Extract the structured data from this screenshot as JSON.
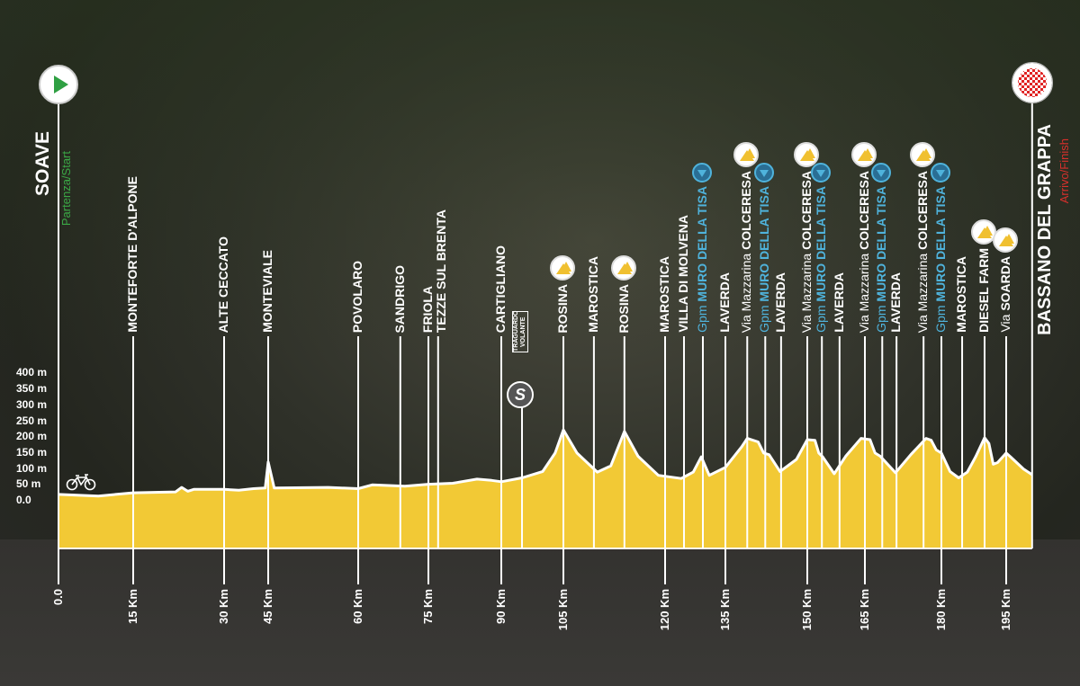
{
  "chart_data": {
    "type": "area",
    "title": "",
    "xlabel": "",
    "ylabel": "",
    "x_unit": "km",
    "y_unit": "m",
    "ylim": [
      0,
      400
    ],
    "y_ticks": [
      "0.0",
      "50 m",
      "100 m",
      "150 m",
      "200 m",
      "250 m",
      "300 m",
      "350 m",
      "400 m"
    ],
    "x_ticks": [
      {
        "km": 0,
        "label": "0.0"
      },
      {
        "km": 15,
        "label": "15 Km"
      },
      {
        "km": 30,
        "label": "30 Km"
      },
      {
        "km": 45,
        "label": "45 Km"
      },
      {
        "km": 60,
        "label": "60 Km"
      },
      {
        "km": 75,
        "label": "75 Km"
      },
      {
        "km": 90,
        "label": "90 Km"
      },
      {
        "km": 105,
        "label": "105 Km"
      },
      {
        "km": 120,
        "label": "120 Km"
      },
      {
        "km": 135,
        "label": "135 Km"
      },
      {
        "km": 150,
        "label": "150 Km"
      },
      {
        "km": 165,
        "label": "165 Km"
      },
      {
        "km": 180,
        "label": "180 Km"
      },
      {
        "km": 195,
        "label": "195 Km"
      }
    ],
    "profile": [
      [
        0,
        20
      ],
      [
        8,
        15
      ],
      [
        15,
        25
      ],
      [
        22,
        28
      ],
      [
        23,
        42
      ],
      [
        24,
        30
      ],
      [
        25,
        36
      ],
      [
        30,
        36
      ],
      [
        35,
        33
      ],
      [
        40,
        38
      ],
      [
        44,
        40
      ],
      [
        45,
        122
      ],
      [
        46,
        40
      ],
      [
        55,
        42
      ],
      [
        60,
        38
      ],
      [
        63,
        50
      ],
      [
        70,
        46
      ],
      [
        75,
        52
      ],
      [
        80,
        55
      ],
      [
        85,
        68
      ],
      [
        88,
        64
      ],
      [
        90,
        60
      ],
      [
        95,
        72
      ],
      [
        100,
        92
      ],
      [
        103,
        150
      ],
      [
        105,
        223
      ],
      [
        107,
        150
      ],
      [
        110,
        90
      ],
      [
        112,
        110
      ],
      [
        114,
        218
      ],
      [
        116,
        140
      ],
      [
        119,
        80
      ],
      [
        124,
        70
      ],
      [
        127,
        90
      ],
      [
        129,
        138
      ],
      [
        131,
        80
      ],
      [
        135,
        105
      ],
      [
        138,
        170
      ],
      [
        139,
        196
      ],
      [
        141,
        185
      ],
      [
        142,
        150
      ],
      [
        143,
        145
      ],
      [
        145,
        92
      ],
      [
        148,
        130
      ],
      [
        150,
        192
      ],
      [
        152,
        190
      ],
      [
        153,
        150
      ],
      [
        154,
        138
      ],
      [
        157,
        85
      ],
      [
        160,
        140
      ],
      [
        164,
        196
      ],
      [
        166,
        192
      ],
      [
        167,
        150
      ],
      [
        168,
        140
      ],
      [
        171,
        88
      ],
      [
        174,
        145
      ],
      [
        177,
        196
      ],
      [
        178,
        190
      ],
      [
        179,
        160
      ],
      [
        180,
        150
      ],
      [
        182,
        92
      ],
      [
        184,
        72
      ],
      [
        186,
        90
      ],
      [
        188,
        140
      ],
      [
        190,
        198
      ],
      [
        191,
        180
      ],
      [
        192,
        115
      ],
      [
        193,
        120
      ],
      [
        195,
        150
      ],
      [
        196,
        138
      ],
      [
        199,
        100
      ],
      [
        201,
        82
      ]
    ],
    "fill_color": "#f2c935",
    "grid": false
  },
  "start": {
    "town": "SOAVE",
    "caption": "Partenza/Start",
    "caption_color": "#3aa845",
    "km": 0
  },
  "finish": {
    "town": "BASSANO DEL GRAPPA",
    "caption": "Arrivo/Finish",
    "caption_color": "#d9302c",
    "km": 201
  },
  "sprint": {
    "label": "TRAGUARDO VOLANTE",
    "symbol": "S",
    "km": 95
  },
  "locations": [
    {
      "name": "MONTEFORTE D'ALPONE",
      "km": 15
    },
    {
      "name": "ALTE CECCATO",
      "km": 30
    },
    {
      "name": "MONTEVIALE",
      "km": 45
    },
    {
      "name": "POVOLARO",
      "km": 60
    },
    {
      "name": "SANDRIGO",
      "km": 69
    },
    {
      "name": "FRIOLA",
      "km": 75
    },
    {
      "name": "TEZZE SUL BRENTA",
      "km": 77
    },
    {
      "name": "CARTIGLIANO",
      "km": 90
    },
    {
      "name": "ROSINA",
      "km": 105,
      "icon": "climb"
    },
    {
      "name": "MAROSTICA",
      "km": 109.5
    },
    {
      "name": "ROSINA",
      "km": 114,
      "icon": "climb"
    },
    {
      "name": "MAROSTICA",
      "km": 120
    },
    {
      "name": "VILLA DI MOLVENA",
      "km": 124.7
    },
    {
      "prefix": "Gpm",
      "name": "MURO DELLA TISA",
      "km": 129.4,
      "color": "blue",
      "icon": "gpm"
    },
    {
      "name": "LAVERDA",
      "km": 135
    },
    {
      "prefix": "Via Mazzarina",
      "name": "COLCERESA",
      "km": 139,
      "icon": "climb"
    },
    {
      "prefix": "Gpm",
      "name": "MURO DELLA TISA",
      "km": 142.3,
      "color": "blue",
      "icon": "gpm"
    },
    {
      "name": "LAVERDA",
      "km": 145.2
    },
    {
      "prefix": "Via Mazzarina",
      "name": "COLCERESA",
      "km": 150,
      "icon": "climb"
    },
    {
      "prefix": "Gpm",
      "name": "MURO DELLA TISA",
      "km": 153.8,
      "color": "blue",
      "icon": "gpm"
    },
    {
      "name": "LAVERDA",
      "km": 158.4
    },
    {
      "prefix": "Via Mazzarina",
      "name": "COLCERESA",
      "km": 165,
      "icon": "climb"
    },
    {
      "prefix": "Gpm",
      "name": "MURO DELLA TISA",
      "km": 168.4,
      "color": "blue",
      "icon": "gpm"
    },
    {
      "name": "LAVERDA",
      "km": 171.2
    },
    {
      "prefix": "Via Mazzarina",
      "name": "COLCERESA",
      "km": 176.5,
      "icon": "climb"
    },
    {
      "prefix": "Gpm",
      "name": "MURO DELLA TISA",
      "km": 180,
      "color": "blue",
      "icon": "gpm"
    },
    {
      "name": "MAROSTICA",
      "km": 184.8
    },
    {
      "name": "DIESEL FARM",
      "km": 190,
      "icon": "climb"
    },
    {
      "prefix": "Via",
      "name": "SOARDA",
      "km": 195,
      "icon": "climb"
    }
  ]
}
